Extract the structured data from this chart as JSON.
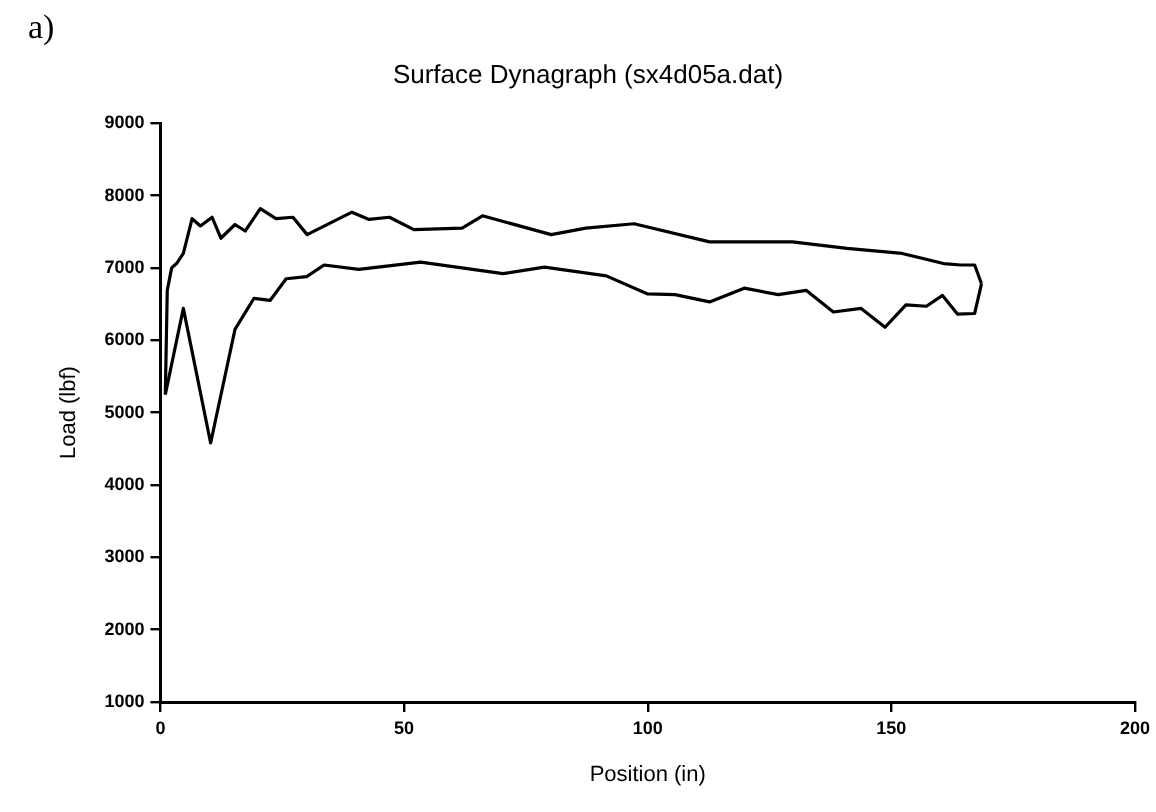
{
  "chart_data": {
    "type": "line",
    "title": "Surface Dynagraph (sx4d05a.dat)",
    "xlabel": "Position (in)",
    "ylabel": "Load (lbf)",
    "annotations": [
      "a)"
    ],
    "series": [
      {
        "color": "#000000",
        "x": [
          1,
          4.7,
          10.3,
          15.3,
          19.2,
          22.5,
          25.8,
          30,
          33.6,
          40.7,
          53.4,
          70.3,
          78.8,
          91.5,
          100,
          105.6,
          112.7,
          119.8,
          126.8,
          132.5,
          138.1,
          143.8,
          148.7,
          153,
          157.2,
          160.5,
          163.6,
          167.1,
          168.5
        ],
        "values": [
          5250,
          6440,
          4580,
          6150,
          6580,
          6550,
          6850,
          6880,
          7040,
          6980,
          7080,
          6920,
          7010,
          6890,
          6640,
          6630,
          6530,
          6720,
          6630,
          6690,
          6390,
          6440,
          6180,
          6490,
          6470,
          6620,
          6360,
          6370,
          6780
        ]
      },
      {
        "color": "#000000",
        "x": [
          1,
          1.4,
          2.3,
          3.3,
          4.7,
          6.5,
          8.2,
          10.6,
          12.4,
          15.3,
          17.4,
          20.5,
          23.7,
          27.2,
          30.1,
          39.3,
          42.8,
          47,
          52,
          61.9,
          66.1,
          80.2,
          87.3,
          97.2,
          112.7,
          129.7,
          140.9,
          152.2,
          160.7,
          164.3,
          167.1,
          168.5
        ],
        "values": [
          5250,
          6690,
          7000,
          7060,
          7200,
          7680,
          7580,
          7700,
          7410,
          7600,
          7510,
          7820,
          7680,
          7700,
          7460,
          7770,
          7670,
          7700,
          7530,
          7550,
          7720,
          7460,
          7550,
          7610,
          7360,
          7360,
          7270,
          7200,
          7060,
          7040,
          7040,
          6780
        ]
      }
    ],
    "xlim": [
      0,
      200
    ],
    "xticks": [
      0,
      50,
      100,
      150,
      200
    ],
    "ylim": [
      1000,
      9000
    ],
    "yticks": [
      1000,
      2000,
      3000,
      4000,
      5000,
      6000,
      7000,
      8000,
      9000
    ],
    "grid": false,
    "legend": false,
    "marker": "none",
    "line_style": "solid"
  }
}
